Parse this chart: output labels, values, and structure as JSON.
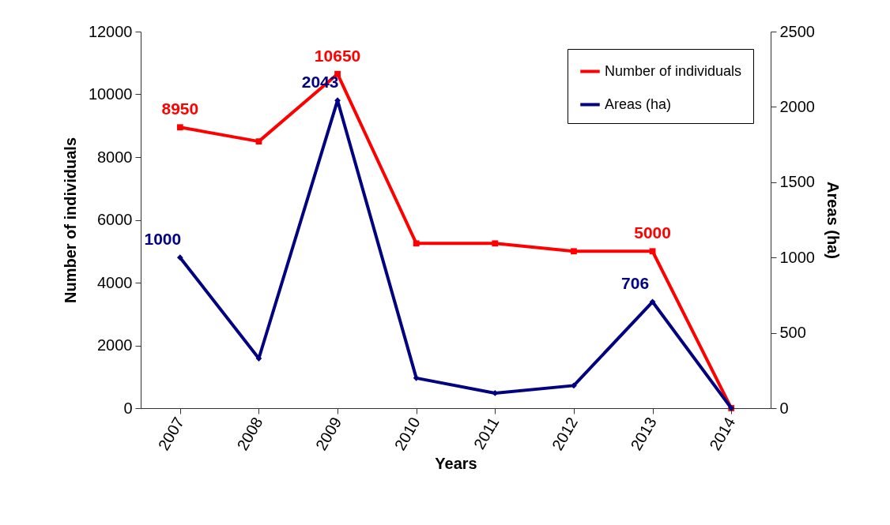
{
  "chart_data": {
    "type": "line",
    "xlabel": "Years",
    "ylabel": "Number of individuals",
    "y2label": "Areas (ha)",
    "categories": [
      "2007",
      "2008",
      "2009",
      "2010",
      "2011",
      "2012",
      "2013",
      "2014"
    ],
    "series": [
      {
        "name": "Number of individuals",
        "color": "#ff0000",
        "marker": "square",
        "values": [
          8950,
          8500,
          10650,
          5250,
          5250,
          5000,
          5000,
          0
        ],
        "value_labels": [
          "8950",
          null,
          "10650",
          null,
          null,
          null,
          "5000",
          null
        ]
      },
      {
        "name": "Areas (ha)",
        "color": "#000080",
        "marker": "diamond",
        "axis": "y2",
        "values": [
          1000,
          330,
          2043,
          200,
          100,
          150,
          706,
          0
        ],
        "value_labels": [
          "1000",
          null,
          "2043",
          null,
          null,
          null,
          "706",
          null
        ]
      }
    ],
    "ylim": [
      0,
      12000
    ],
    "yticks": [
      0,
      2000,
      4000,
      6000,
      8000,
      10000,
      12000
    ],
    "y2lim": [
      0,
      2500
    ],
    "y2ticks": [
      0,
      500,
      1000,
      1500,
      2000,
      2500
    ],
    "grid": false,
    "legend": "top right"
  }
}
